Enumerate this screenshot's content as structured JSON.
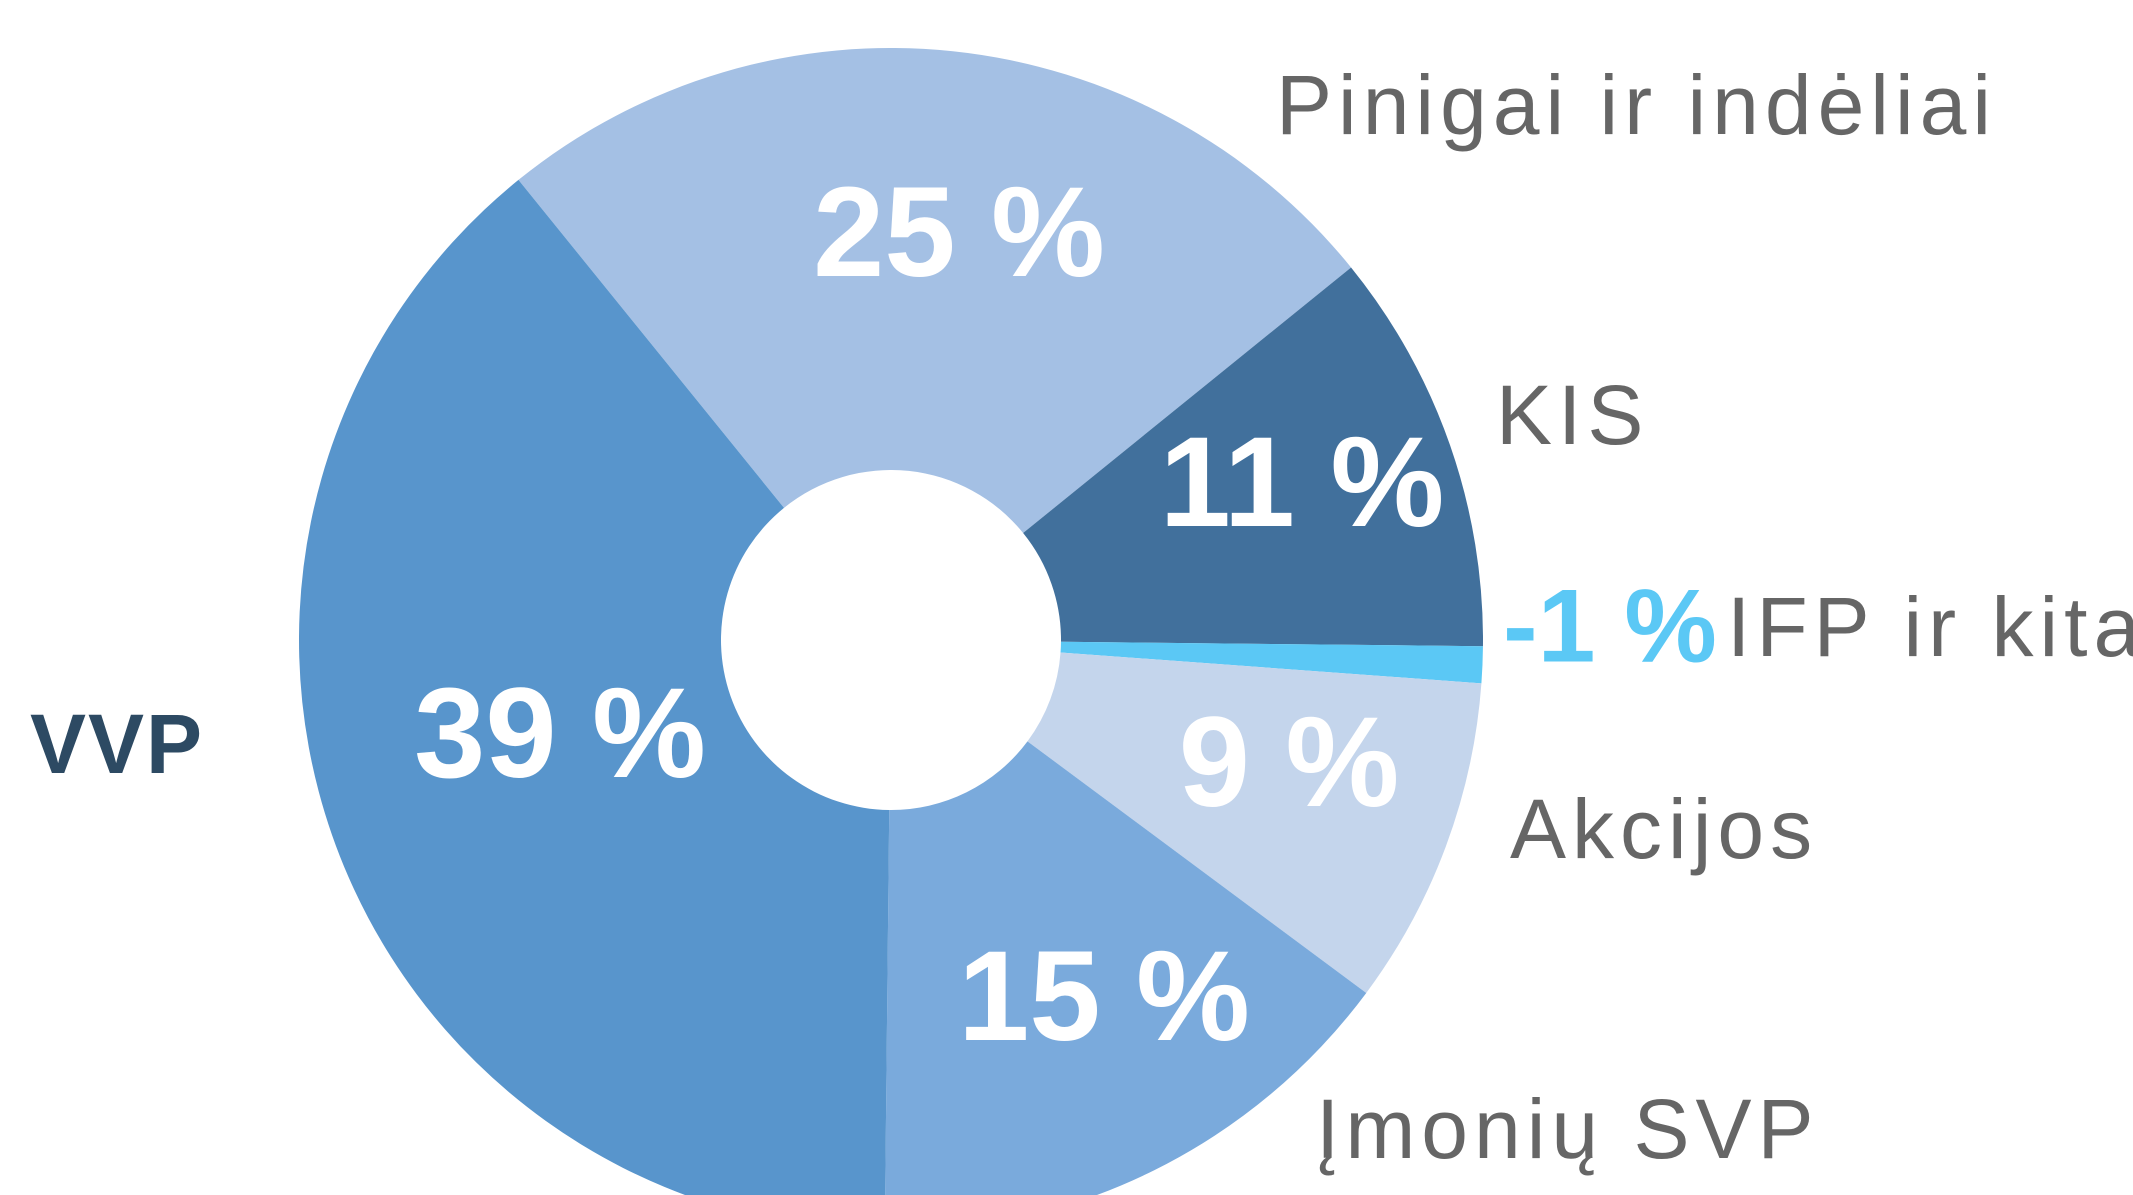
{
  "chart_data": {
    "type": "donut",
    "categories": [
      "Pinigai ir indėliai",
      "KIS",
      "IFP ir kita",
      "Akcijos",
      "Įmonių SVP",
      "VVP"
    ],
    "values": [
      25,
      11,
      -1,
      9,
      15,
      39
    ],
    "value_labels": [
      "25 %",
      "11 %",
      "-1 %",
      "9 %",
      "15 %",
      "39 %"
    ],
    "colors": [
      "#a4c0e4",
      "#41709c",
      "#5bc8f5",
      "#c4d5ec",
      "#7aaadc",
      "#5895cc"
    ]
  }
}
